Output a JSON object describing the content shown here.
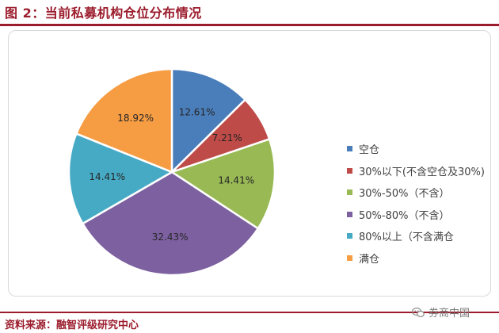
{
  "figure": {
    "title": "图 2：当前私募机构仓位分布情况",
    "source": "资料来源：融智评级研究中心",
    "watermark": "券商中国"
  },
  "chart_data": {
    "type": "pie",
    "title": "",
    "legend_position": "right",
    "slices": [
      {
        "label": "空仓",
        "value": 12.61,
        "display": "12.61%",
        "color": "#4a7ebb"
      },
      {
        "label": "30%以下(不含空仓及30%)",
        "value": 7.21,
        "display": "7.21%",
        "color": "#be4b48"
      },
      {
        "label": "30%-50%（不含）",
        "value": 14.41,
        "display": "14.41%",
        "color": "#98b954"
      },
      {
        "label": "50%-80%（不含）",
        "value": 32.43,
        "display": "32.43%",
        "color": "#7d60a0"
      },
      {
        "label": "80%以上（不含满仓",
        "value": 14.41,
        "display": "14.41%",
        "color": "#46aac5"
      },
      {
        "label": "满仓",
        "value": 18.92,
        "display": "18.92%",
        "color": "#f69c43"
      }
    ]
  }
}
